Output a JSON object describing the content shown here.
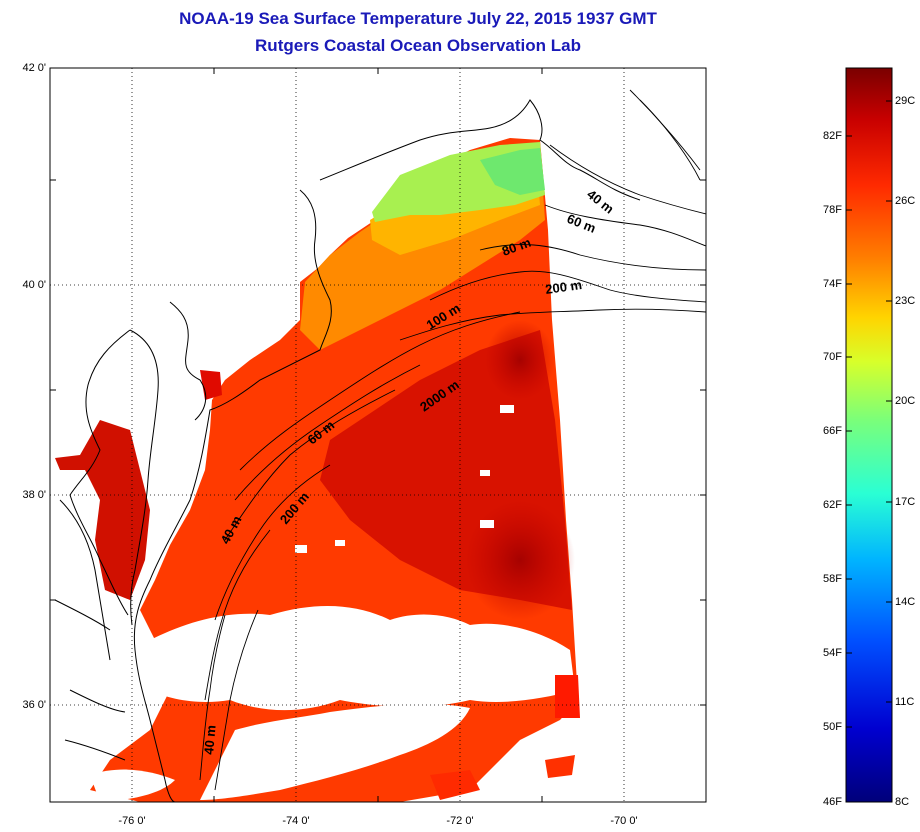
{
  "title": {
    "line1": "NOAA-19 Sea Surface Temperature July 22, 2015 1937 GMT",
    "line2": "Rutgers Coastal Ocean Observation Lab"
  },
  "axes": {
    "y_labels": [
      "42 0'",
      "40 0'",
      "38 0'",
      "36 0'"
    ],
    "x_labels": [
      "-76 0'",
      "-74 0'",
      "-72 0'",
      "-70 0'"
    ],
    "lat_range": [
      35.0,
      42.0
    ],
    "lon_range": [
      -77.0,
      -69.0
    ],
    "grid": "dotted"
  },
  "depth_contours": {
    "labels": [
      "40 m",
      "60 m",
      "80 m",
      "200 m",
      "100 m",
      "2000 m",
      "60 m",
      "40 m",
      "200 m",
      "40 m"
    ]
  },
  "colorbar": {
    "fahrenheit": [
      "82F",
      "78F",
      "74F",
      "70F",
      "66F",
      "62F",
      "58F",
      "54F",
      "50F",
      "46F"
    ],
    "celsius": [
      "29C",
      "26C",
      "23C",
      "20C",
      "17C",
      "14C",
      "11C",
      "8C"
    ],
    "colors": [
      "#7a0000",
      "#c80000",
      "#ff2a00",
      "#ff7f00",
      "#ffd400",
      "#d8ff2a",
      "#7aff7a",
      "#2affd4",
      "#00b4ff",
      "#0050ff",
      "#0000d0",
      "#00007a"
    ]
  },
  "colors": {
    "title": "#1a1ab8",
    "sst_warm": "#ff3a00",
    "sst_hot": "#b40000",
    "sst_mid": "#ff9a00",
    "sst_cool": "#a8f050",
    "cloud": "#ffffff"
  }
}
